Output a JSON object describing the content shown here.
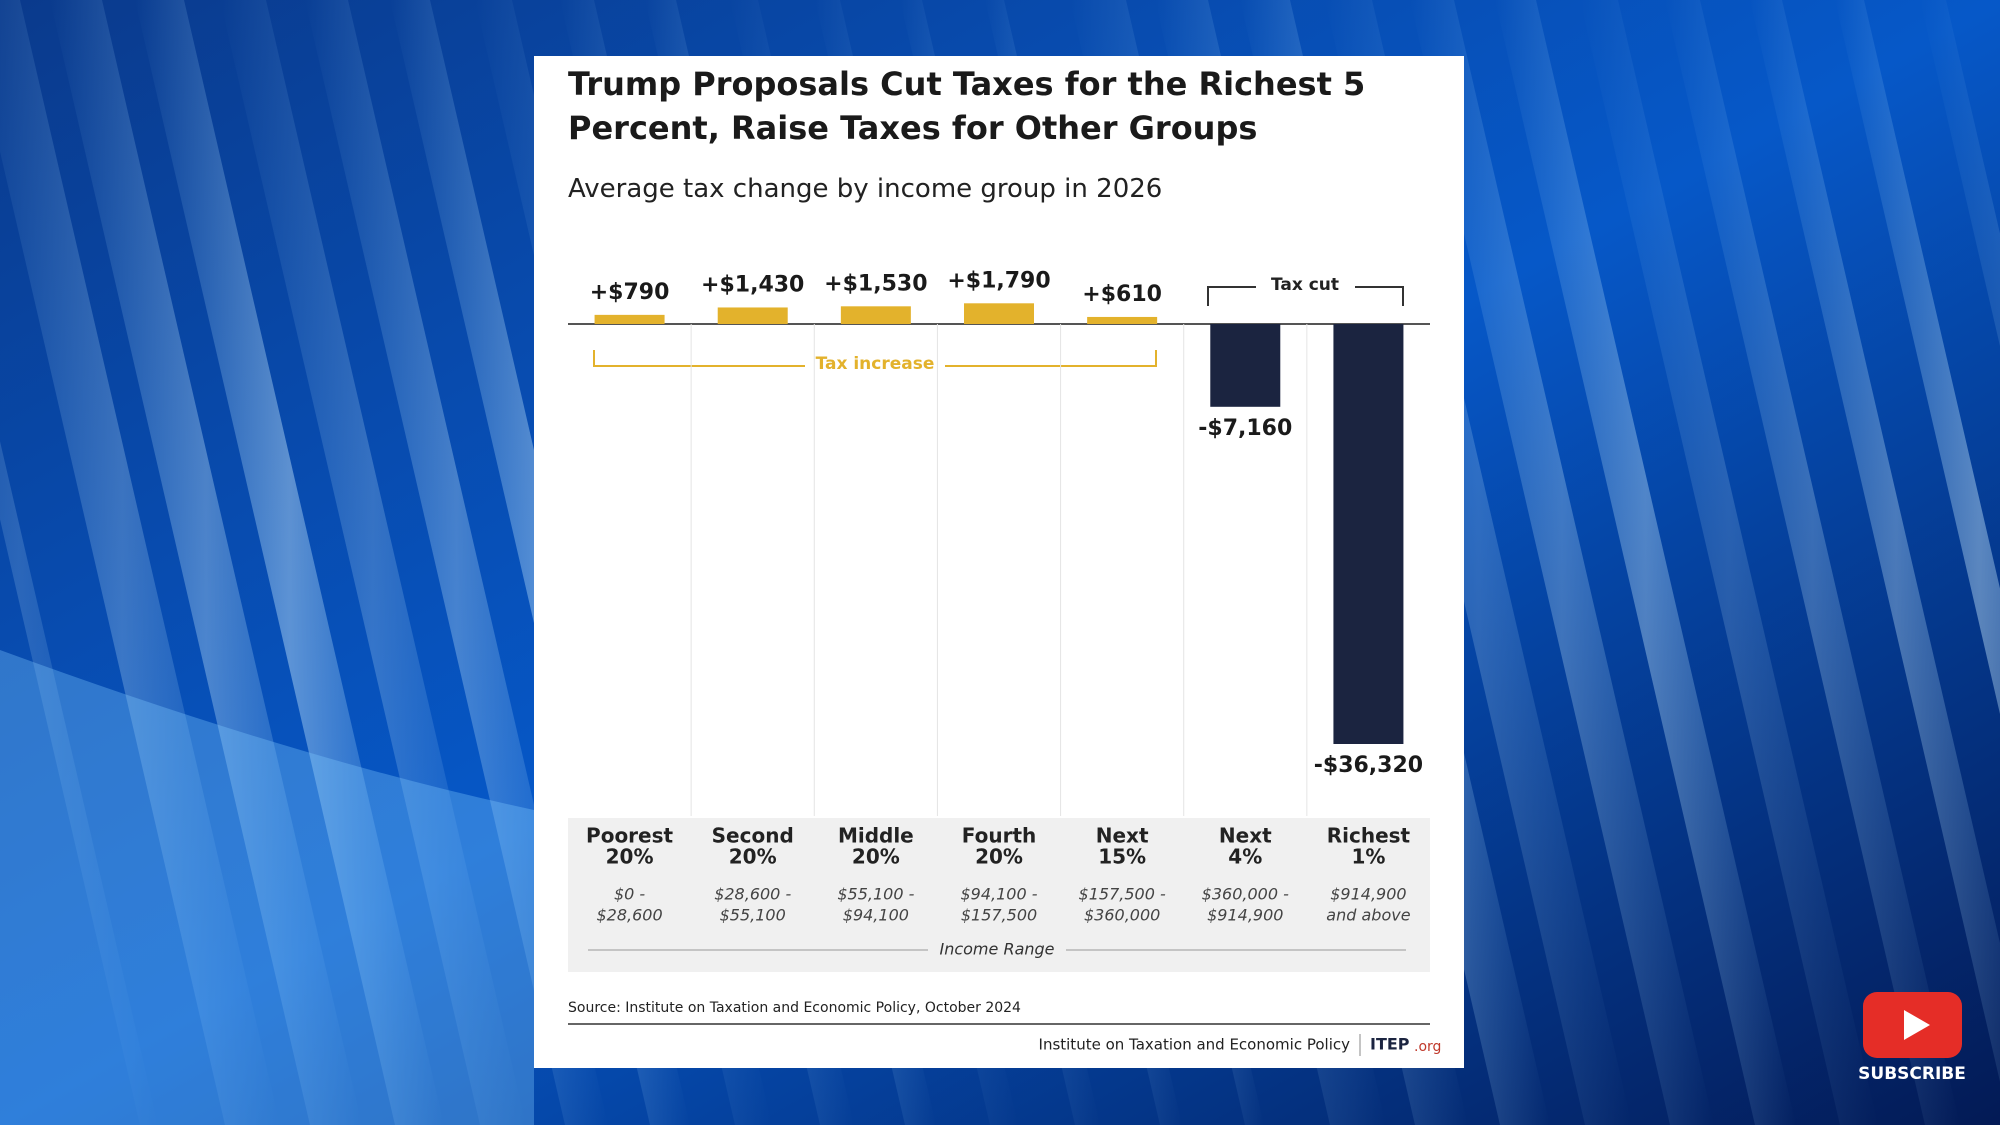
{
  "chart_data": {
    "type": "bar",
    "title": "Trump Proposals Cut Taxes for the Richest 5 Percent, Raise Taxes for Other Groups",
    "subtitle": "Average tax change by income group in 2026",
    "categories": [
      [
        "Poorest",
        "20%"
      ],
      [
        "Second",
        "20%"
      ],
      [
        "Middle",
        "20%"
      ],
      [
        "Fourth",
        "20%"
      ],
      [
        "Next",
        "15%"
      ],
      [
        "Next",
        "4%"
      ],
      [
        "Richest",
        "1%"
      ]
    ],
    "ranges": [
      [
        "$0 -",
        "$28,600"
      ],
      [
        "$28,600 -",
        "$55,100"
      ],
      [
        "$55,100 -",
        "$94,100"
      ],
      [
        "$94,100 -",
        "$157,500"
      ],
      [
        "$157,500 -",
        "$360,000"
      ],
      [
        "$360,000 -",
        "$914,900"
      ],
      [
        "$914,900",
        "and above"
      ]
    ],
    "values": [
      790,
      1430,
      1530,
      1790,
      610,
      -7160,
      -36320
    ],
    "value_labels": [
      "+$790",
      "+$1,430",
      "+$1,530",
      "+$1,790",
      "+$610",
      "-$7,160",
      "-$36,320"
    ],
    "colors": {
      "positive": "#e3b22c",
      "negative": "#1b2440"
    },
    "annotations": {
      "increase": "Tax increase",
      "cut": "Tax cut"
    },
    "x_label": "Income Range",
    "source": "Source: Institute on Taxation and Economic Policy, October 2024",
    "footer": {
      "org": "Institute on Taxation and Economic Policy",
      "brand": "ITEP",
      "brand_suffix": ".org"
    }
  },
  "overlay": {
    "subscribe": "SUBSCRIBE"
  }
}
